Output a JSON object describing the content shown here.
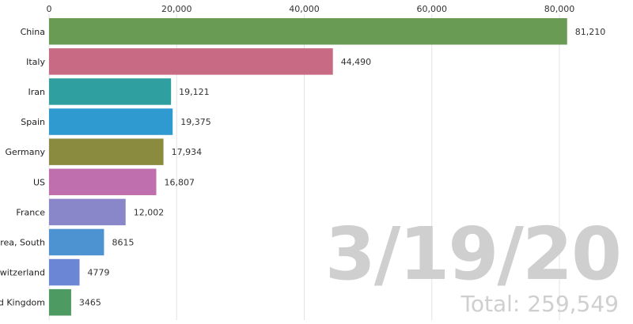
{
  "chart_data": {
    "type": "bar",
    "orientation": "horizontal",
    "categories": [
      "China",
      "Italy",
      "Iran",
      "Spain",
      "Germany",
      "US",
      "France",
      "Korea, South",
      "Switzerland",
      "United Kingdom"
    ],
    "values": [
      81210,
      44490,
      19121,
      19375,
      17934,
      16807,
      12002,
      8615,
      4779,
      3465
    ],
    "value_labels": [
      "81,210",
      "44,490",
      "19,121",
      "19,375",
      "17,934",
      "16,807",
      "12,002",
      "8615",
      "4779",
      "3465"
    ],
    "colors": [
      "#6a9b55",
      "#c96a85",
      "#2f9f9f",
      "#2e9ad0",
      "#8b8b40",
      "#bf6fad",
      "#8a86ca",
      "#4e93d1",
      "#6c86d6",
      "#4e9a63"
    ],
    "x_ticks": [
      0,
      20000,
      40000,
      60000,
      80000
    ],
    "x_tick_labels": [
      "0",
      "20,000",
      "40,000",
      "60,000",
      "80,000"
    ],
    "xlim": [
      0,
      80000
    ],
    "grid": true,
    "axis_position": "top"
  },
  "overlay": {
    "date": "3/19/20",
    "total": "Total: 259,549"
  }
}
